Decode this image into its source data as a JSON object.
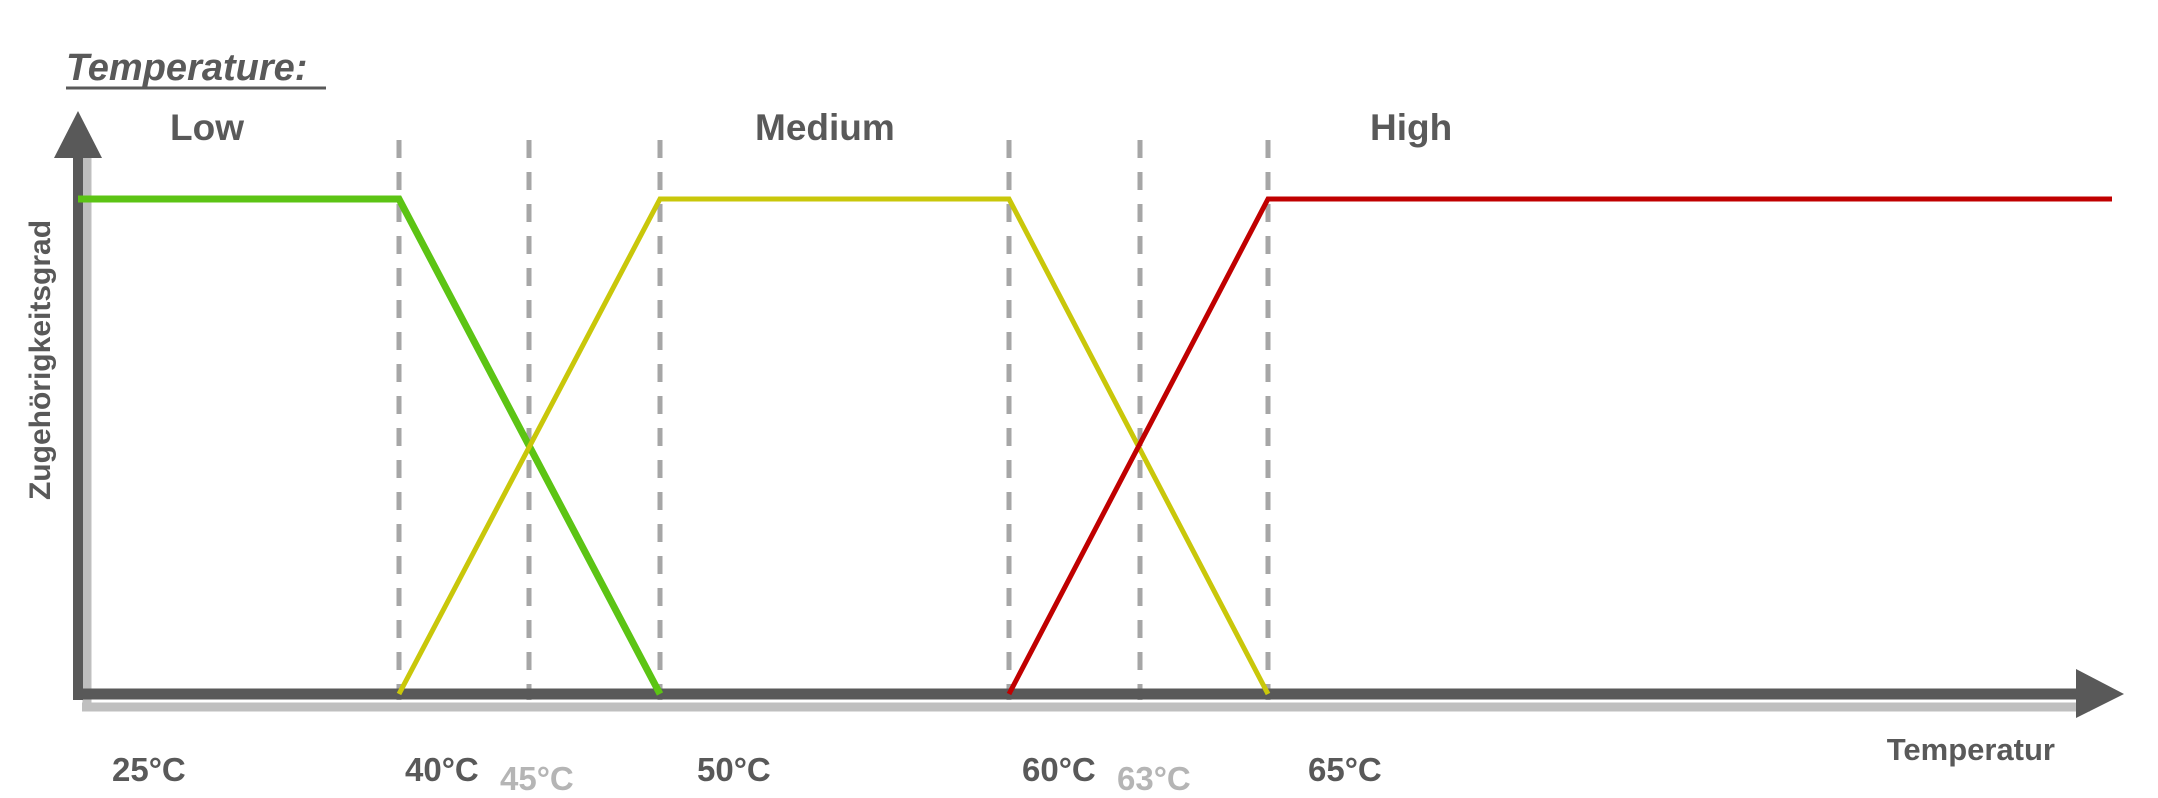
{
  "chart_data": {
    "type": "line",
    "title": "Temperature:",
    "xlabel": "Temperatur",
    "ylabel": "Zugehörigkeitsgrad",
    "category_labels": [
      "Low",
      "Medium",
      "High"
    ],
    "tick_labels": [
      {
        "label": "25°C",
        "faint": false
      },
      {
        "label": "40°C",
        "faint": false
      },
      {
        "label": "45°C",
        "faint": true
      },
      {
        "label": "50°C",
        "faint": false
      },
      {
        "label": "60°C",
        "faint": false
      },
      {
        "label": "63°C",
        "faint": true
      },
      {
        "label": "65°C",
        "faint": false
      }
    ],
    "guide_positions": [
      "40°C",
      "45°C",
      "50°C",
      "60°C",
      "63°C",
      "65°C"
    ],
    "ylim": [
      0,
      1
    ],
    "series": [
      {
        "name": "Low",
        "color": "#5cc414",
        "points": [
          [
            "25°C",
            1
          ],
          [
            "40°C",
            1
          ],
          [
            "50°C",
            0
          ]
        ]
      },
      {
        "name": "Medium",
        "color": "#c9c70a",
        "points": [
          [
            "40°C",
            0
          ],
          [
            "50°C",
            1
          ],
          [
            "60°C",
            1
          ],
          [
            "65°C",
            0
          ]
        ]
      },
      {
        "name": "High",
        "color": "#c00000",
        "points": [
          [
            "60°C",
            0
          ],
          [
            "65°C",
            1
          ],
          [
            "end",
            1
          ]
        ]
      }
    ],
    "colors": {
      "axis": "#595959",
      "axis_shadow": "#bfbfbf",
      "guide": "#a6a6a6"
    }
  }
}
